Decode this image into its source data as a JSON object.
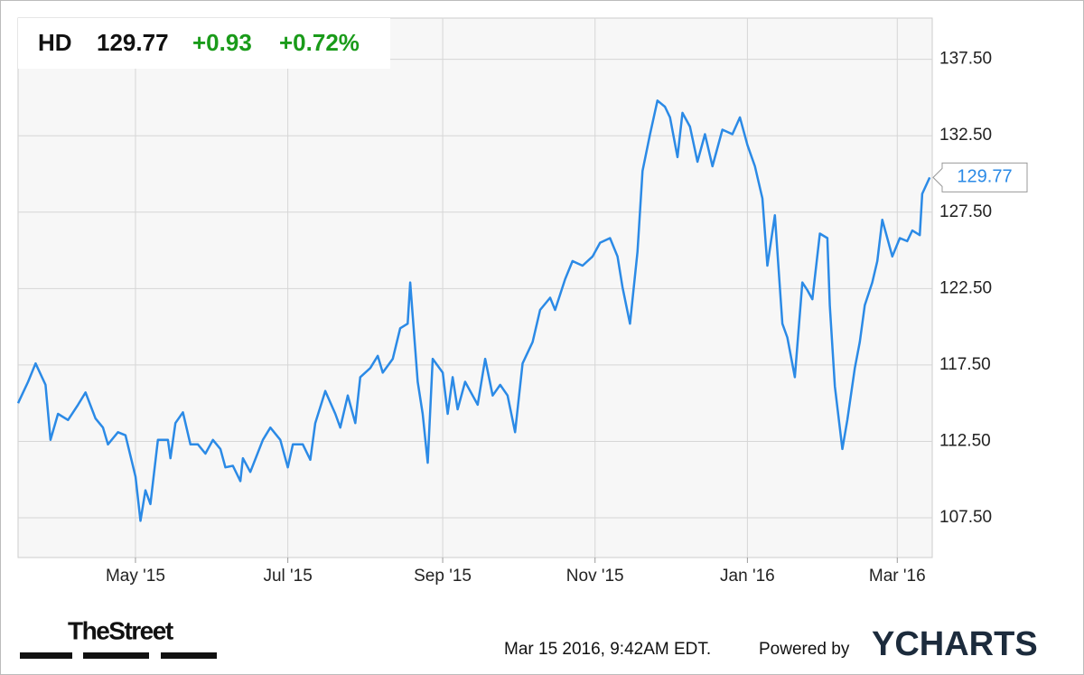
{
  "chart_data": {
    "type": "line",
    "ticker": "HD",
    "price": "129.77",
    "change": "+0.93",
    "change_pct": "+0.72%",
    "logo": "TheStreet",
    "timestamp": "Mar 15 2016, 9:42AM EDT.",
    "powered_by": "Powered by",
    "brand": "YCHARTS",
    "color": "#2b8ae6",
    "grid": true,
    "xlim": [
      0,
      366
    ],
    "xticks": [
      {
        "value": 47,
        "label": "May '15"
      },
      {
        "value": 108,
        "label": "Jul '15"
      },
      {
        "value": 170,
        "label": "Sep '15"
      },
      {
        "value": 231,
        "label": "Nov '15"
      },
      {
        "value": 292,
        "label": "Jan '16"
      },
      {
        "value": 352,
        "label": "Mar '16"
      }
    ],
    "ylim": [
      104.9,
      140.2
    ],
    "yticks": [
      {
        "value": 107.5,
        "label": "107.50"
      },
      {
        "value": 112.5,
        "label": "112.50"
      },
      {
        "value": 117.5,
        "label": "117.50"
      },
      {
        "value": 122.5,
        "label": "122.50"
      },
      {
        "value": 127.5,
        "label": "127.50"
      },
      {
        "value": 132.5,
        "label": "132.50"
      },
      {
        "value": 137.5,
        "label": "137.50"
      }
    ],
    "x": [
      0,
      4,
      7,
      11,
      13,
      16,
      20,
      24,
      27,
      31,
      34,
      36,
      40,
      43,
      47,
      49,
      51,
      53,
      56,
      60,
      61,
      63,
      66,
      69,
      72,
      75,
      78,
      81,
      83,
      86,
      89,
      90,
      93,
      98,
      101,
      105,
      108,
      110,
      114,
      117,
      119,
      123,
      127,
      129,
      132,
      135,
      137,
      141,
      144,
      146,
      150,
      153,
      156,
      157,
      160,
      162,
      164,
      166,
      170,
      172,
      174,
      176,
      179,
      182,
      184,
      187,
      190,
      193,
      196,
      199,
      202,
      206,
      209,
      213,
      215,
      219,
      222,
      226,
      230,
      233,
      237,
      240,
      242,
      245,
      248,
      250,
      253,
      256,
      259,
      261,
      264,
      266,
      269,
      272,
      275,
      278,
      282,
      286,
      289,
      292,
      295,
      298,
      300,
      303,
      306,
      308,
      311,
      314,
      316,
      318,
      321,
      324,
      325,
      327,
      330,
      332,
      335,
      337,
      339,
      342,
      344,
      346,
      350,
      353,
      356,
      358,
      361,
      362,
      365
    ],
    "values": [
      115.0,
      116.4,
      117.6,
      116.2,
      112.6,
      114.3,
      113.9,
      114.9,
      115.7,
      114.0,
      113.4,
      112.3,
      113.1,
      112.9,
      110.2,
      107.3,
      109.3,
      108.4,
      112.6,
      112.6,
      111.4,
      113.7,
      114.4,
      112.3,
      112.3,
      111.7,
      112.6,
      112.0,
      110.8,
      110.9,
      109.9,
      111.4,
      110.5,
      112.6,
      113.4,
      112.6,
      110.8,
      112.3,
      112.3,
      111.3,
      113.7,
      115.8,
      114.3,
      113.4,
      115.5,
      113.7,
      116.7,
      117.3,
      118.1,
      117.0,
      117.9,
      119.9,
      120.2,
      122.9,
      116.4,
      114.3,
      111.1,
      117.9,
      117.0,
      114.3,
      116.7,
      114.6,
      116.4,
      115.5,
      114.9,
      117.9,
      115.5,
      116.2,
      115.5,
      113.1,
      117.6,
      119.0,
      121.1,
      121.9,
      121.1,
      123.1,
      124.3,
      124.0,
      124.6,
      125.5,
      125.8,
      124.6,
      122.6,
      120.2,
      124.9,
      130.2,
      132.6,
      134.8,
      134.4,
      133.7,
      131.1,
      134.0,
      133.1,
      130.8,
      132.6,
      130.5,
      132.9,
      132.6,
      133.7,
      131.9,
      130.5,
      128.4,
      124.0,
      127.3,
      120.2,
      119.3,
      116.7,
      122.9,
      122.4,
      121.8,
      126.1,
      125.8,
      121.4,
      116.1,
      112.0,
      113.9,
      117.3,
      119.0,
      121.4,
      122.9,
      124.3,
      127.0,
      124.6,
      125.8,
      125.6,
      126.3,
      126.0,
      128.7,
      129.77
    ]
  }
}
